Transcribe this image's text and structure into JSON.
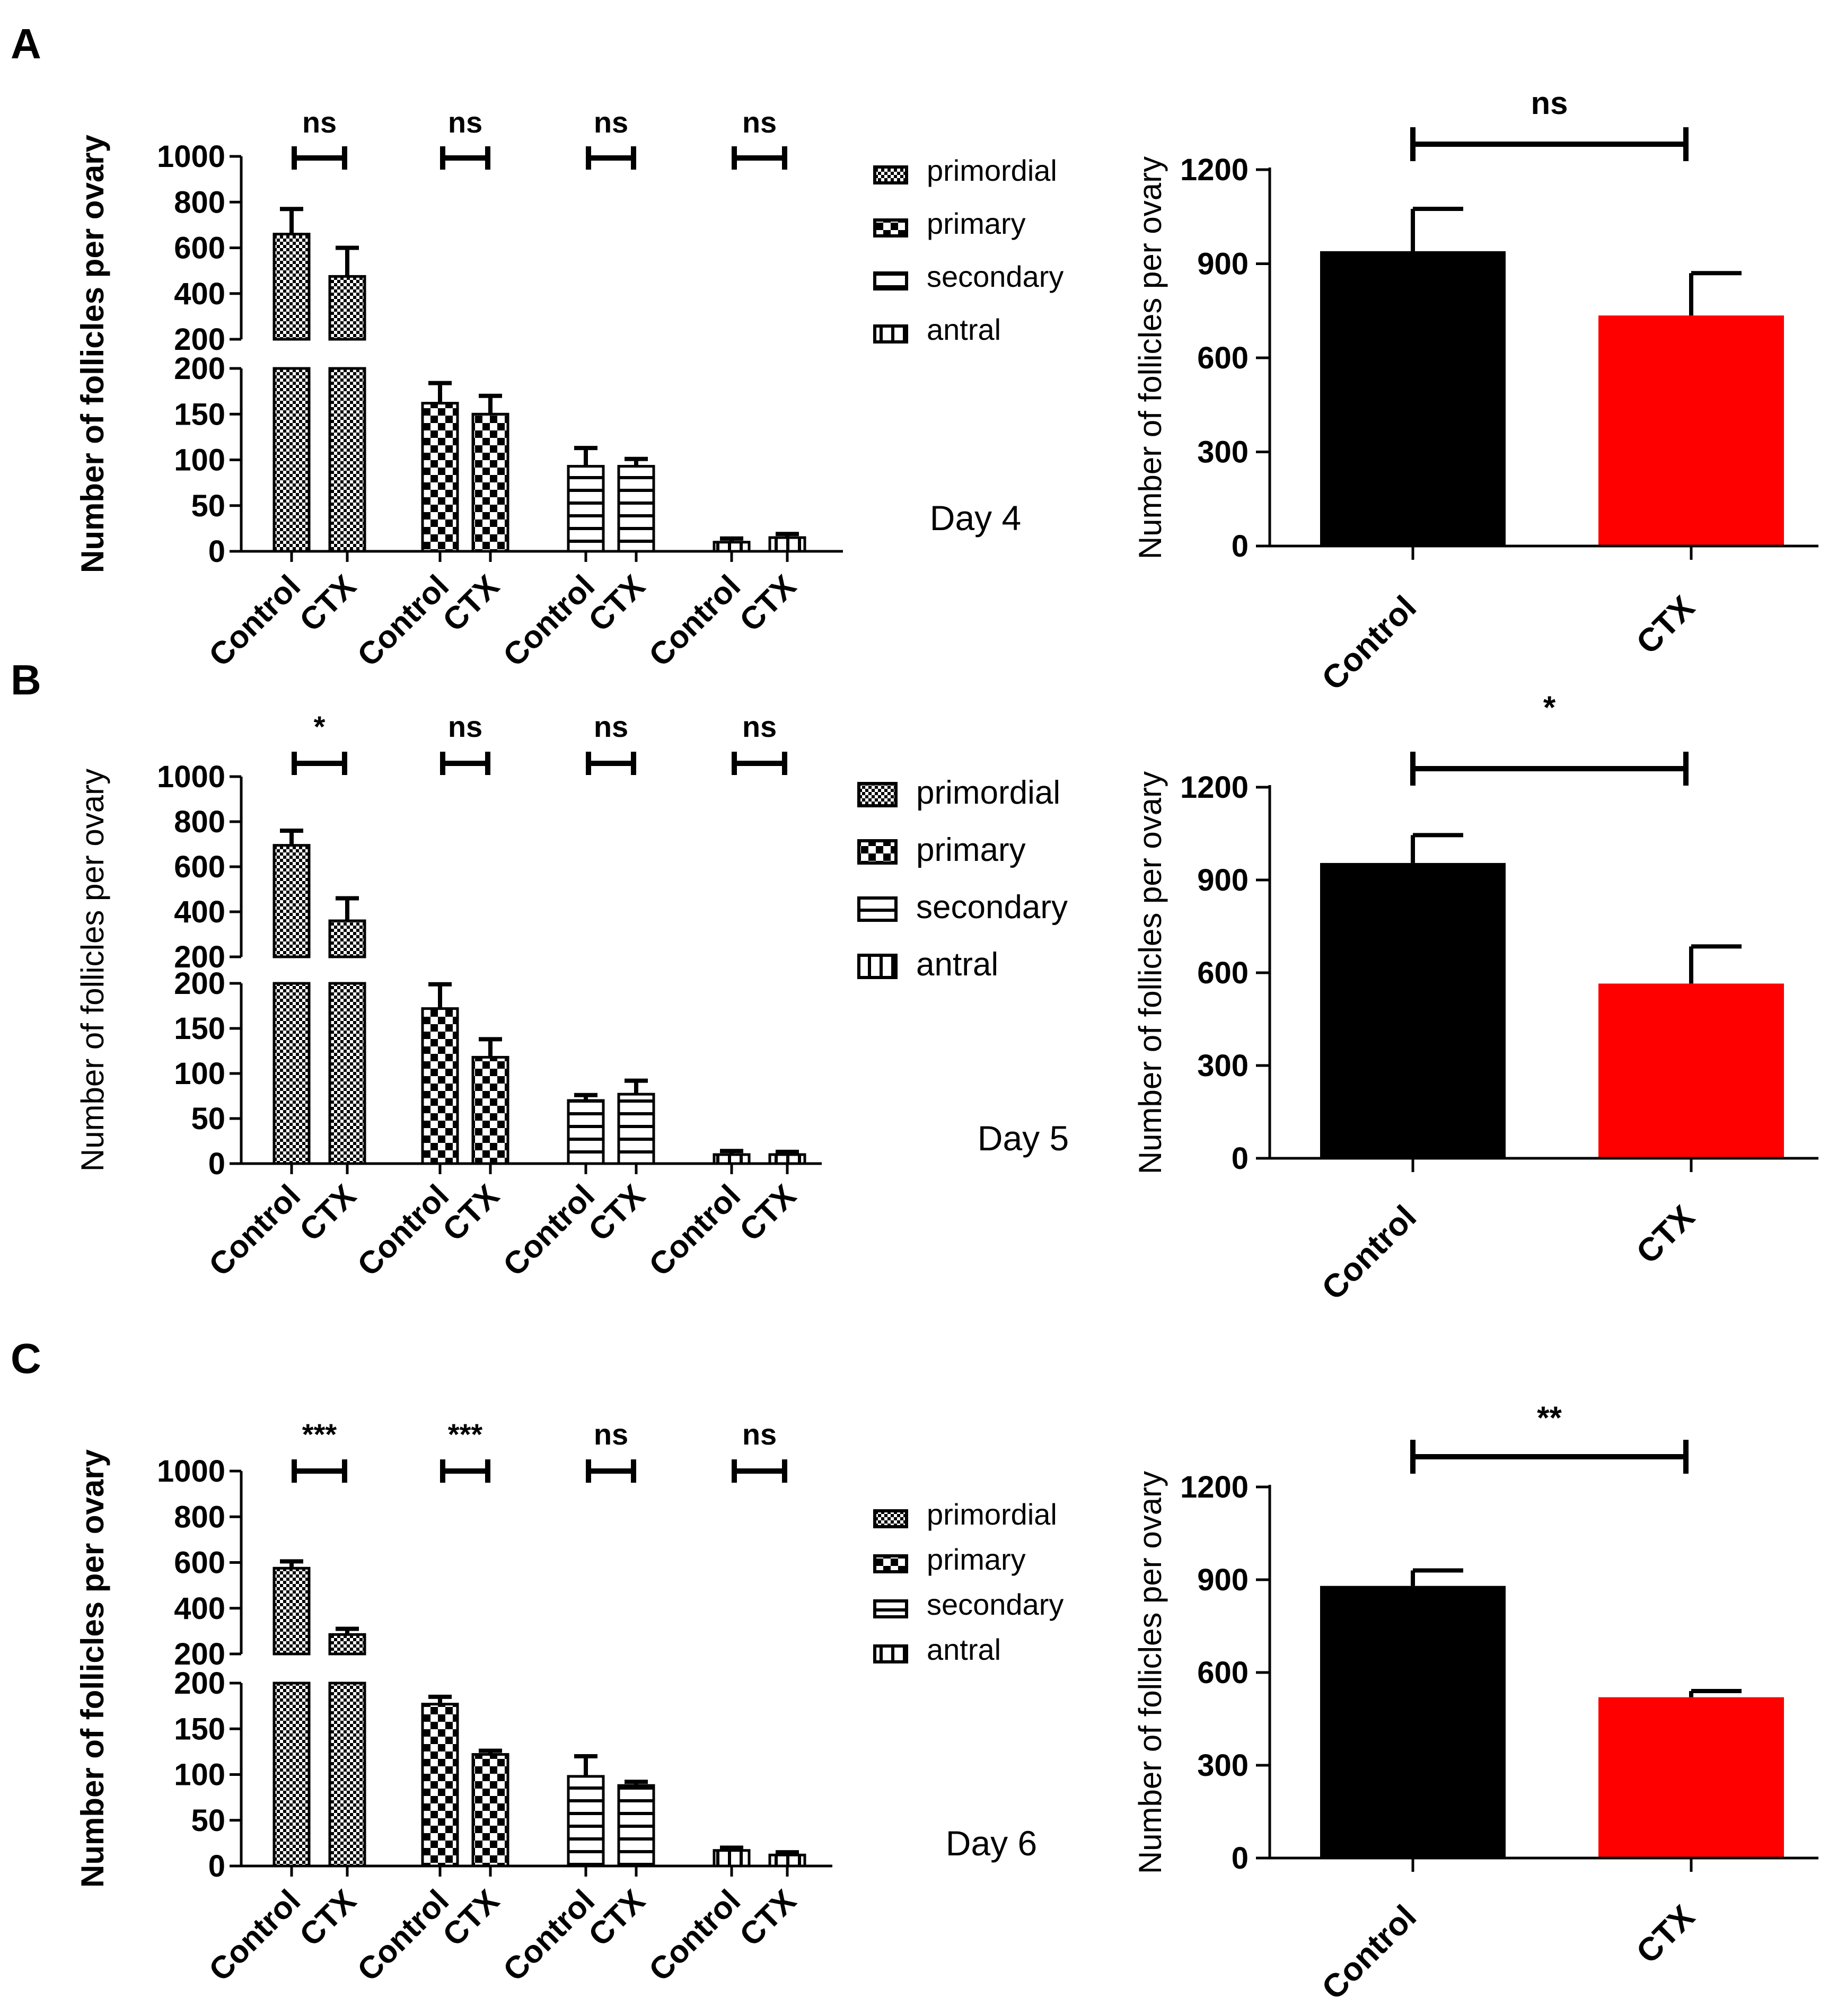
{
  "panel_labels": [
    "A",
    "B",
    "C"
  ],
  "chart_data": [
    {
      "type": "bar",
      "panel": "A",
      "subtype": "grouped-bar-broken-axis",
      "day_label": "Day 4",
      "ylabel": "Number of follicles per ovary",
      "ylabel_bold": true,
      "categories": [
        "Control",
        "CTX",
        "Control",
        "CTX",
        "Control",
        "CTX",
        "Control",
        "CTX"
      ],
      "groups": [
        "primordial",
        "primary",
        "secondary",
        "antral"
      ],
      "legend": [
        "primordial",
        "primary",
        "secondary",
        "antral"
      ],
      "legend_large": false,
      "values": [
        660,
        475,
        162,
        150,
        93,
        93,
        10,
        15
      ],
      "errors": [
        110,
        125,
        22,
        20,
        20,
        8,
        4,
        4
      ],
      "significance": [
        "ns",
        "ns",
        "ns",
        "ns"
      ],
      "lower_axis": {
        "ylim": [
          0,
          200
        ],
        "ticks": [
          "0",
          "50",
          "100",
          "150",
          "200"
        ]
      },
      "upper_axis": {
        "ylim": [
          200,
          1000
        ],
        "ticks": [
          "200",
          "400",
          "600",
          "800",
          "1000"
        ]
      }
    },
    {
      "type": "bar",
      "panel": "A",
      "subtype": "total",
      "ylabel": "Number of follicles per ovary",
      "categories": [
        "Control",
        "CTX"
      ],
      "values": [
        940,
        735
      ],
      "errors": [
        135,
        135
      ],
      "colors": [
        "#000000",
        "#ff0000"
      ],
      "ylim": [
        0,
        1200
      ],
      "ticks": [
        "0",
        "300",
        "600",
        "900",
        "1200"
      ],
      "significance": "ns"
    },
    {
      "type": "bar",
      "panel": "B",
      "subtype": "grouped-bar-broken-axis",
      "day_label": "Day 5",
      "ylabel": "Number of follicles per ovary",
      "ylabel_bold": false,
      "categories": [
        "Control",
        "CTX",
        "Control",
        "CTX",
        "Control",
        "CTX",
        "Control",
        "CTX"
      ],
      "groups": [
        "primordial",
        "primary",
        "secondary",
        "antral"
      ],
      "legend": [
        "primordial",
        "primary",
        "secondary",
        "antral"
      ],
      "legend_large": true,
      "values": [
        695,
        360,
        172,
        118,
        70,
        77,
        10,
        10
      ],
      "errors": [
        65,
        100,
        27,
        20,
        6,
        15,
        4,
        3
      ],
      "significance": [
        "*",
        "ns",
        "ns",
        "ns"
      ],
      "lower_axis": {
        "ylim": [
          0,
          200
        ],
        "ticks": [
          "0",
          "50",
          "100",
          "150",
          "200"
        ]
      },
      "upper_axis": {
        "ylim": [
          200,
          1000
        ],
        "ticks": [
          "200",
          "400",
          "600",
          "800",
          "1000"
        ]
      }
    },
    {
      "type": "bar",
      "panel": "B",
      "subtype": "total",
      "ylabel": "Number of follicles per ovary",
      "categories": [
        "Control",
        "CTX"
      ],
      "values": [
        955,
        565
      ],
      "errors": [
        90,
        120
      ],
      "colors": [
        "#000000",
        "#ff0000"
      ],
      "ylim": [
        0,
        1200
      ],
      "ticks": [
        "0",
        "300",
        "600",
        "900",
        "1200"
      ],
      "significance": "*"
    },
    {
      "type": "bar",
      "panel": "C",
      "subtype": "grouped-bar-broken-axis",
      "day_label": "Day 6",
      "ylabel": "Number of follicles per ovary",
      "ylabel_bold": true,
      "categories": [
        "Control",
        "CTX",
        "Control",
        "CTX",
        "Control",
        "CTX",
        "Control",
        "CTX"
      ],
      "groups": [
        "primordial",
        "primary",
        "secondary",
        "antral"
      ],
      "legend": [
        "primordial",
        "primary",
        "secondary",
        "antral"
      ],
      "legend_large": false,
      "values": [
        575,
        285,
        177,
        122,
        98,
        88,
        17,
        12
      ],
      "errors": [
        30,
        25,
        8,
        4,
        22,
        4,
        3,
        3
      ],
      "significance": [
        "***",
        "***",
        "ns",
        "ns"
      ],
      "lower_axis": {
        "ylim": [
          0,
          200
        ],
        "ticks": [
          "0",
          "50",
          "100",
          "150",
          "200"
        ]
      },
      "upper_axis": {
        "ylim": [
          200,
          1000
        ],
        "ticks": [
          "200",
          "400",
          "600",
          "800",
          "1000"
        ]
      }
    },
    {
      "type": "bar",
      "panel": "C",
      "subtype": "total",
      "ylabel": "Number of follicles per ovary",
      "categories": [
        "Control",
        "CTX"
      ],
      "values": [
        880,
        520
      ],
      "errors": [
        50,
        20
      ],
      "colors": [
        "#000000",
        "#ff0000"
      ],
      "ylim": [
        0,
        1200
      ],
      "ticks": [
        "0",
        "300",
        "600",
        "900",
        "1200"
      ],
      "significance": "**"
    }
  ]
}
